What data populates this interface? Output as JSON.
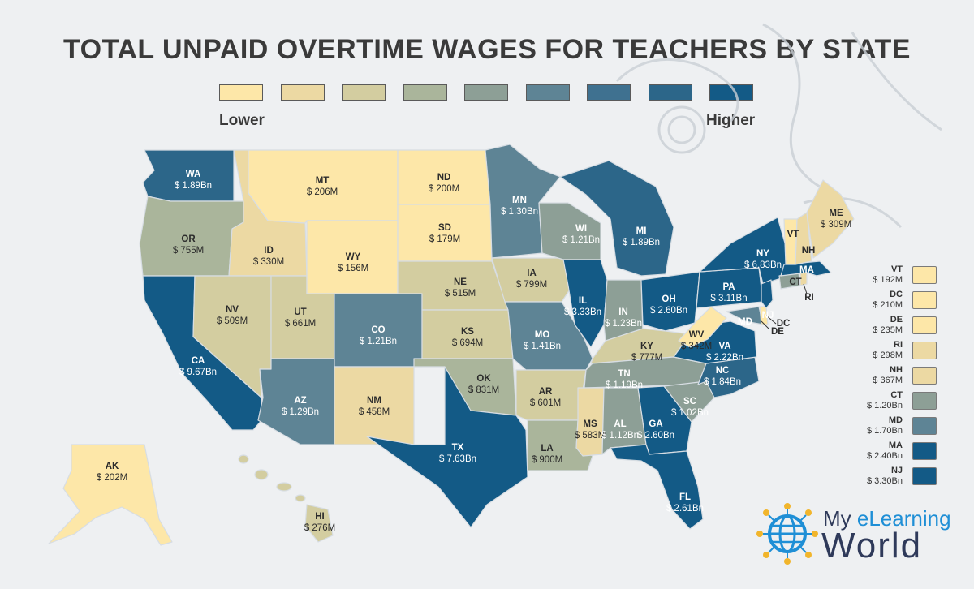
{
  "title": "TOTAL UNPAID OVERTIME WAGES FOR TEACHERS BY STATE",
  "scale": {
    "low_label": "Lower",
    "high_label": "Higher",
    "colors": [
      "#fde7a8",
      "#ecd9a3",
      "#d3cda0",
      "#aab59b",
      "#8d9f96",
      "#5e8495",
      "#3f7190",
      "#2c6689",
      "#135a86"
    ]
  },
  "states": [
    {
      "code": "WA",
      "value": "$ 1.89Bn",
      "color": "#2c6689"
    },
    {
      "code": "OR",
      "value": "$ 755M",
      "color": "#aab59b"
    },
    {
      "code": "CA",
      "value": "$ 9.67Bn",
      "color": "#135a86"
    },
    {
      "code": "ID",
      "value": "$ 330M",
      "color": "#ecd9a3"
    },
    {
      "code": "NV",
      "value": "$ 509M",
      "color": "#d3cda0"
    },
    {
      "code": "UT",
      "value": "$ 661M",
      "color": "#d3cda0"
    },
    {
      "code": "AZ",
      "value": "$ 1.29Bn",
      "color": "#5e8495"
    },
    {
      "code": "MT",
      "value": "$ 206M",
      "color": "#fde7a8"
    },
    {
      "code": "WY",
      "value": "$ 156M",
      "color": "#fde7a8"
    },
    {
      "code": "CO",
      "value": "$ 1.21Bn",
      "color": "#5e8495"
    },
    {
      "code": "NM",
      "value": "$ 458M",
      "color": "#ecd9a3"
    },
    {
      "code": "ND",
      "value": "$ 200M",
      "color": "#fde7a8"
    },
    {
      "code": "SD",
      "value": "$ 179M",
      "color": "#fde7a8"
    },
    {
      "code": "NE",
      "value": "$ 515M",
      "color": "#d3cda0"
    },
    {
      "code": "KS",
      "value": "$ 694M",
      "color": "#d3cda0"
    },
    {
      "code": "OK",
      "value": "$ 831M",
      "color": "#aab59b"
    },
    {
      "code": "TX",
      "value": "$ 7.63Bn",
      "color": "#135a86"
    },
    {
      "code": "MN",
      "value": "$ 1.30Bn",
      "color": "#5e8495"
    },
    {
      "code": "IA",
      "value": "$ 799M",
      "color": "#d3cda0"
    },
    {
      "code": "MO",
      "value": "$ 1.41Bn",
      "color": "#5e8495"
    },
    {
      "code": "AR",
      "value": "$ 601M",
      "color": "#d3cda0"
    },
    {
      "code": "LA",
      "value": "$ 900M",
      "color": "#aab59b"
    },
    {
      "code": "WI",
      "value": "$ 1.21Bn",
      "color": "#8d9f96"
    },
    {
      "code": "IL",
      "value": "$ 3.33Bn",
      "color": "#135a86"
    },
    {
      "code": "MI",
      "value": "$ 1.89Bn",
      "color": "#2c6689"
    },
    {
      "code": "IN",
      "value": "$ 1.23Bn",
      "color": "#8d9f96"
    },
    {
      "code": "OH",
      "value": "$ 2.60Bn",
      "color": "#135a86"
    },
    {
      "code": "KY",
      "value": "$ 777M",
      "color": "#d3cda0"
    },
    {
      "code": "TN",
      "value": "$ 1.19Bn",
      "color": "#8d9f96"
    },
    {
      "code": "MS",
      "value": "$ 583M",
      "color": "#ecd9a3"
    },
    {
      "code": "AL",
      "value": "$ 1.12Bn",
      "color": "#8d9f96"
    },
    {
      "code": "GA",
      "value": "$ 2.60Bn",
      "color": "#135a86"
    },
    {
      "code": "FL",
      "value": "$ 2.61Bn",
      "color": "#135a86"
    },
    {
      "code": "SC",
      "value": "$ 1.02Bn",
      "color": "#8d9f96"
    },
    {
      "code": "NC",
      "value": "$ 1.84Bn",
      "color": "#2c6689"
    },
    {
      "code": "VA",
      "value": "$ 2.22Bn",
      "color": "#135a86"
    },
    {
      "code": "WV",
      "value": "$ 342M",
      "color": "#fde7a8"
    },
    {
      "code": "PA",
      "value": "$ 3.11Bn",
      "color": "#135a86"
    },
    {
      "code": "NY",
      "value": "$ 6.83Bn",
      "color": "#135a86"
    },
    {
      "code": "ME",
      "value": "$ 309M",
      "color": "#ecd9a3"
    },
    {
      "code": "AK",
      "value": "$ 202M",
      "color": "#fde7a8"
    },
    {
      "code": "HI",
      "value": "$ 276M",
      "color": "#d3cda0"
    }
  ],
  "small_state_labels": [
    "VT",
    "NH",
    "MA",
    "CT",
    "RI",
    "NJ",
    "DC",
    "DE",
    "MD"
  ],
  "small_states_legend": [
    {
      "code": "VT",
      "value": "$ 192M",
      "color": "#fde7a8"
    },
    {
      "code": "DC",
      "value": "$ 210M",
      "color": "#fde7a8"
    },
    {
      "code": "DE",
      "value": "$ 235M",
      "color": "#fde7a8"
    },
    {
      "code": "RI",
      "value": "$ 298M",
      "color": "#ecd9a3"
    },
    {
      "code": "NH",
      "value": "$ 367M",
      "color": "#ecd9a3"
    },
    {
      "code": "CT",
      "value": "$ 1.20Bn",
      "color": "#8d9f96"
    },
    {
      "code": "MD",
      "value": "$ 1.70Bn",
      "color": "#5e8495"
    },
    {
      "code": "MA",
      "value": "$ 2.40Bn",
      "color": "#135a86"
    },
    {
      "code": "NJ",
      "value": "$ 3.30Bn",
      "color": "#135a86"
    }
  ],
  "logo": {
    "line1_a": "My ",
    "line1_b": "eLearning",
    "line2": "World"
  }
}
